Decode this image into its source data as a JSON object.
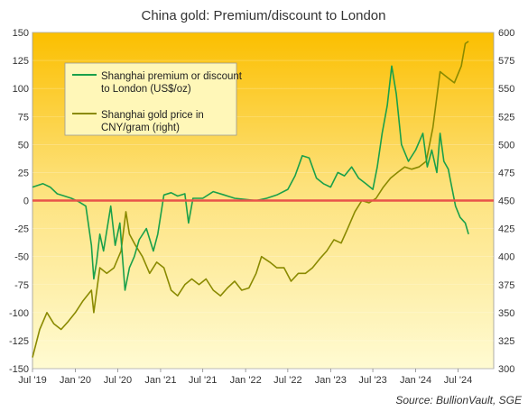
{
  "chart_data": {
    "type": "line",
    "title": "China gold: Premium/discount  to London",
    "source": "Source: BullionVault, SGE",
    "x_ticks": [
      "Jul '19",
      "Jan '20",
      "Jul '20",
      "Jan '21",
      "Jul '21",
      "Jan '22",
      "Jul '22",
      "Jan '23",
      "Jul '23",
      "Jan '24",
      "Jul '24"
    ],
    "y_left": {
      "ticks": [
        "150",
        "125",
        "100",
        "75",
        "50",
        "25",
        "0",
        "-25",
        "-50",
        "-75",
        "-100",
        "-125",
        "-150"
      ],
      "ylim": [
        -150,
        150
      ]
    },
    "y_right": {
      "ticks": [
        "600",
        "575",
        "550",
        "525",
        "500",
        "475",
        "450",
        "425",
        "400",
        "375",
        "350",
        "325",
        "300"
      ],
      "ylim": [
        300,
        600
      ]
    },
    "zero_line_color": "#e8534a",
    "legend_placement": "top-left",
    "series": [
      {
        "name": "Shanghai premium or discount to London (US$/oz)",
        "axis": "left",
        "color": "#1aa04a",
        "values": [
          {
            "x": "2019-07-01",
            "y": 12
          },
          {
            "x": "2019-08-15",
            "y": 15
          },
          {
            "x": "2019-09-15",
            "y": 12
          },
          {
            "x": "2019-10-15",
            "y": 6
          },
          {
            "x": "2019-11-15",
            "y": 4
          },
          {
            "x": "2019-12-15",
            "y": 2
          },
          {
            "x": "2020-01-15",
            "y": -1
          },
          {
            "x": "2020-02-15",
            "y": -5
          },
          {
            "x": "2020-03-10",
            "y": -40
          },
          {
            "x": "2020-03-20",
            "y": -70
          },
          {
            "x": "2020-04-01",
            "y": -55
          },
          {
            "x": "2020-04-15",
            "y": -30
          },
          {
            "x": "2020-05-01",
            "y": -45
          },
          {
            "x": "2020-06-01",
            "y": -5
          },
          {
            "x": "2020-06-20",
            "y": -40
          },
          {
            "x": "2020-07-10",
            "y": -20
          },
          {
            "x": "2020-08-01",
            "y": -80
          },
          {
            "x": "2020-08-20",
            "y": -60
          },
          {
            "x": "2020-09-10",
            "y": -50
          },
          {
            "x": "2020-10-01",
            "y": -35
          },
          {
            "x": "2020-11-01",
            "y": -25
          },
          {
            "x": "2020-12-01",
            "y": -45
          },
          {
            "x": "2020-12-20",
            "y": -30
          },
          {
            "x": "2021-01-15",
            "y": 5
          },
          {
            "x": "2021-02-15",
            "y": 7
          },
          {
            "x": "2021-03-15",
            "y": 4
          },
          {
            "x": "2021-04-15",
            "y": 6
          },
          {
            "x": "2021-05-01",
            "y": -20
          },
          {
            "x": "2021-05-20",
            "y": 2
          },
          {
            "x": "2021-07-01",
            "y": 2
          },
          {
            "x": "2021-08-15",
            "y": 8
          },
          {
            "x": "2021-10-01",
            "y": 5
          },
          {
            "x": "2021-11-15",
            "y": 2
          },
          {
            "x": "2022-01-01",
            "y": 1
          },
          {
            "x": "2022-02-15",
            "y": 0
          },
          {
            "x": "2022-04-01",
            "y": 2
          },
          {
            "x": "2022-05-15",
            "y": 5
          },
          {
            "x": "2022-07-01",
            "y": 10
          },
          {
            "x": "2022-08-01",
            "y": 22
          },
          {
            "x": "2022-09-01",
            "y": 40
          },
          {
            "x": "2022-10-01",
            "y": 38
          },
          {
            "x": "2022-11-01",
            "y": 20
          },
          {
            "x": "2022-12-01",
            "y": 15
          },
          {
            "x": "2023-01-01",
            "y": 12
          },
          {
            "x": "2023-02-01",
            "y": 25
          },
          {
            "x": "2023-03-01",
            "y": 22
          },
          {
            "x": "2023-04-01",
            "y": 30
          },
          {
            "x": "2023-05-01",
            "y": 20
          },
          {
            "x": "2023-06-01",
            "y": 15
          },
          {
            "x": "2023-07-01",
            "y": 10
          },
          {
            "x": "2023-07-20",
            "y": 30
          },
          {
            "x": "2023-08-10",
            "y": 60
          },
          {
            "x": "2023-09-01",
            "y": 85
          },
          {
            "x": "2023-09-20",
            "y": 120
          },
          {
            "x": "2023-10-10",
            "y": 95
          },
          {
            "x": "2023-11-01",
            "y": 50
          },
          {
            "x": "2023-12-01",
            "y": 35
          },
          {
            "x": "2024-01-01",
            "y": 45
          },
          {
            "x": "2024-02-01",
            "y": 60
          },
          {
            "x": "2024-02-20",
            "y": 30
          },
          {
            "x": "2024-03-10",
            "y": 45
          },
          {
            "x": "2024-04-01",
            "y": 25
          },
          {
            "x": "2024-04-15",
            "y": 60
          },
          {
            "x": "2024-05-01",
            "y": 35
          },
          {
            "x": "2024-05-20",
            "y": 28
          },
          {
            "x": "2024-06-01",
            "y": 15
          },
          {
            "x": "2024-06-20",
            "y": -5
          },
          {
            "x": "2024-07-10",
            "y": -15
          },
          {
            "x": "2024-08-01",
            "y": -20
          },
          {
            "x": "2024-08-15",
            "y": -30
          }
        ]
      },
      {
        "name": "Shanghai gold price in CNY/gram (right)",
        "axis": "right",
        "color": "#8a8a00",
        "values": [
          {
            "x": "2019-07-01",
            "y": 310
          },
          {
            "x": "2019-08-01",
            "y": 335
          },
          {
            "x": "2019-09-01",
            "y": 350
          },
          {
            "x": "2019-10-01",
            "y": 340
          },
          {
            "x": "2019-11-01",
            "y": 335
          },
          {
            "x": "2019-12-01",
            "y": 342
          },
          {
            "x": "2020-01-01",
            "y": 350
          },
          {
            "x": "2020-02-01",
            "y": 360
          },
          {
            "x": "2020-03-10",
            "y": 370
          },
          {
            "x": "2020-03-20",
            "y": 350
          },
          {
            "x": "2020-04-15",
            "y": 390
          },
          {
            "x": "2020-05-15",
            "y": 385
          },
          {
            "x": "2020-06-15",
            "y": 390
          },
          {
            "x": "2020-07-15",
            "y": 405
          },
          {
            "x": "2020-08-05",
            "y": 440
          },
          {
            "x": "2020-08-20",
            "y": 420
          },
          {
            "x": "2020-09-15",
            "y": 410
          },
          {
            "x": "2020-10-15",
            "y": 400
          },
          {
            "x": "2020-11-15",
            "y": 385
          },
          {
            "x": "2020-12-15",
            "y": 395
          },
          {
            "x": "2021-01-15",
            "y": 390
          },
          {
            "x": "2021-02-15",
            "y": 370
          },
          {
            "x": "2021-03-15",
            "y": 365
          },
          {
            "x": "2021-04-15",
            "y": 375
          },
          {
            "x": "2021-05-15",
            "y": 380
          },
          {
            "x": "2021-06-15",
            "y": 375
          },
          {
            "x": "2021-07-15",
            "y": 380
          },
          {
            "x": "2021-08-15",
            "y": 370
          },
          {
            "x": "2021-09-15",
            "y": 365
          },
          {
            "x": "2021-10-15",
            "y": 372
          },
          {
            "x": "2021-11-15",
            "y": 378
          },
          {
            "x": "2021-12-15",
            "y": 370
          },
          {
            "x": "2022-01-15",
            "y": 372
          },
          {
            "x": "2022-02-15",
            "y": 385
          },
          {
            "x": "2022-03-10",
            "y": 400
          },
          {
            "x": "2022-04-15",
            "y": 395
          },
          {
            "x": "2022-05-15",
            "y": 390
          },
          {
            "x": "2022-06-15",
            "y": 390
          },
          {
            "x": "2022-07-15",
            "y": 378
          },
          {
            "x": "2022-08-15",
            "y": 385
          },
          {
            "x": "2022-09-15",
            "y": 385
          },
          {
            "x": "2022-10-15",
            "y": 390
          },
          {
            "x": "2022-11-15",
            "y": 398
          },
          {
            "x": "2022-12-15",
            "y": 405
          },
          {
            "x": "2023-01-15",
            "y": 415
          },
          {
            "x": "2023-02-15",
            "y": 412
          },
          {
            "x": "2023-03-15",
            "y": 425
          },
          {
            "x": "2023-04-15",
            "y": 440
          },
          {
            "x": "2023-05-15",
            "y": 450
          },
          {
            "x": "2023-06-15",
            "y": 448
          },
          {
            "x": "2023-07-15",
            "y": 452
          },
          {
            "x": "2023-08-15",
            "y": 462
          },
          {
            "x": "2023-09-15",
            "y": 470
          },
          {
            "x": "2023-10-15",
            "y": 475
          },
          {
            "x": "2023-11-15",
            "y": 480
          },
          {
            "x": "2023-12-15",
            "y": 478
          },
          {
            "x": "2024-01-15",
            "y": 480
          },
          {
            "x": "2024-02-15",
            "y": 485
          },
          {
            "x": "2024-03-15",
            "y": 515
          },
          {
            "x": "2024-04-15",
            "y": 565
          },
          {
            "x": "2024-05-15",
            "y": 560
          },
          {
            "x": "2024-06-15",
            "y": 555
          },
          {
            "x": "2024-07-15",
            "y": 570
          },
          {
            "x": "2024-08-01",
            "y": 590
          },
          {
            "x": "2024-08-15",
            "y": 592
          }
        ]
      }
    ]
  }
}
